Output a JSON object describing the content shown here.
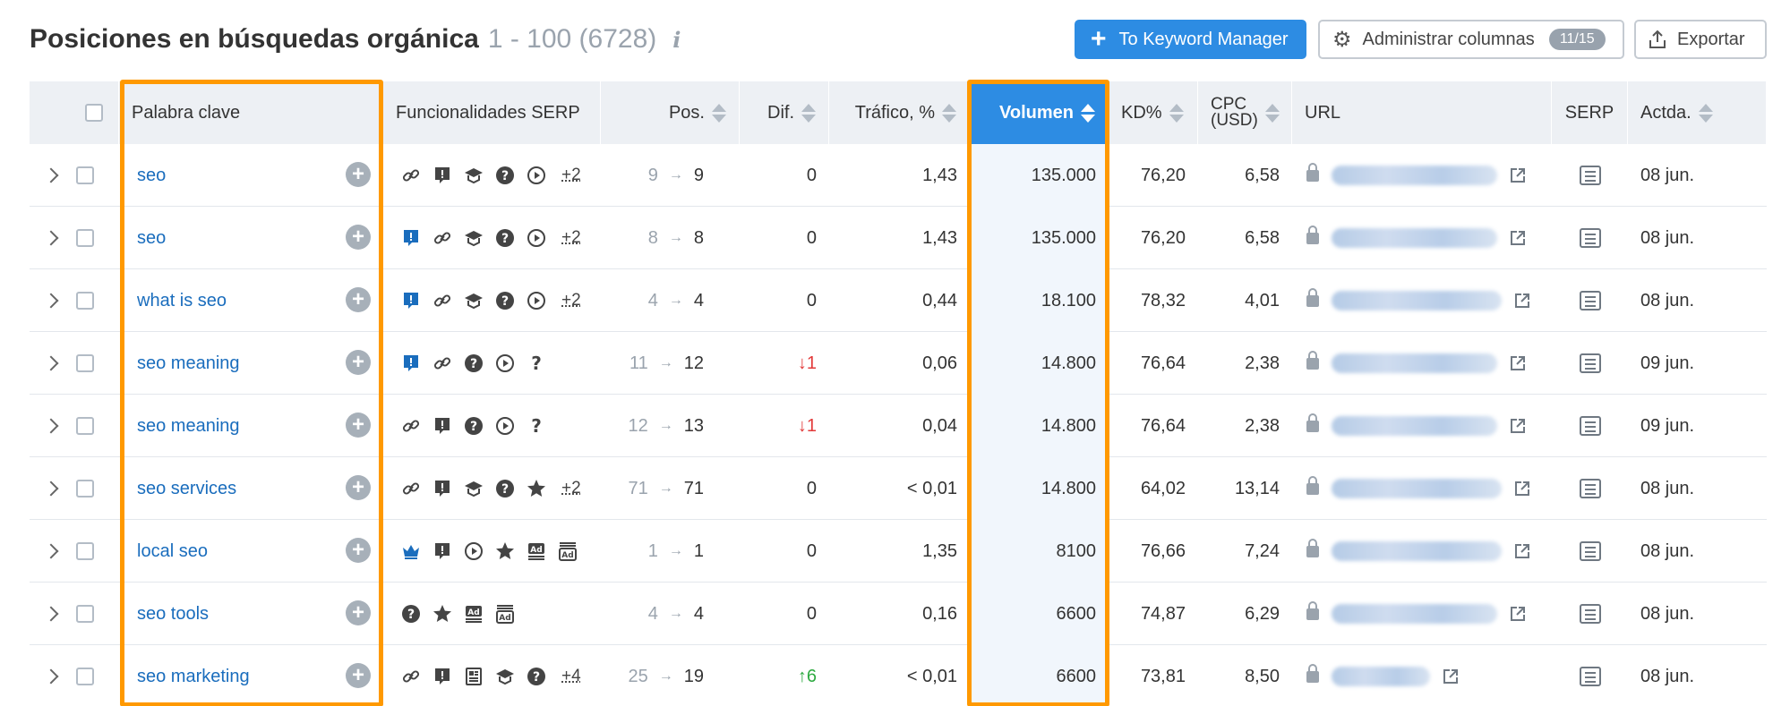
{
  "header": {
    "title": "Posiciones en búsquedas orgánica",
    "range": "1 - 100 (6728)",
    "info_icon": "i",
    "btn_keyword_manager": "To Keyword Manager",
    "btn_columns": "Administrar columnas",
    "columns_badge": "11/15",
    "btn_export": "Exportar"
  },
  "columns": {
    "keyword": "Palabra clave",
    "serp_features": "Funcionalidades SERP",
    "pos": "Pos.",
    "dif": "Dif.",
    "traffic": "Tráfico, %",
    "volume": "Volumen",
    "kd": "KD%",
    "cpc_line1": "CPC",
    "cpc_line2": "(USD)",
    "url": "URL",
    "serp": "SERP",
    "updated": "Actda."
  },
  "colors": {
    "accent": "#2d8ce3",
    "highlight": "#ff9900",
    "link": "#1a6dbd",
    "down": "#e23a3a",
    "up": "#2eaa41"
  },
  "rows": [
    {
      "keyword": "seo",
      "icons": [
        "link-icon",
        "review-icon",
        "graduation-cap-icon",
        "faq-icon",
        "video-icon"
      ],
      "more": "+2",
      "pos_prev": "9",
      "pos_cur": "9",
      "dif": "0",
      "dif_dir": "none",
      "traffic": "1,43",
      "volume": "135.000",
      "kd": "76,20",
      "cpc": "6,58",
      "date": "08 jun."
    },
    {
      "keyword": "seo",
      "icons": [
        "review-icon",
        "link-icon",
        "graduation-cap-icon",
        "faq-icon",
        "video-icon"
      ],
      "more": "+2",
      "pos_prev": "8",
      "pos_cur": "8",
      "dif": "0",
      "dif_dir": "none",
      "traffic": "1,43",
      "volume": "135.000",
      "kd": "76,20",
      "cpc": "6,58",
      "date": "08 jun."
    },
    {
      "keyword": "what is seo",
      "icons": [
        "review-icon",
        "link-icon",
        "graduation-cap-icon",
        "faq-icon",
        "video-icon"
      ],
      "more": "+2",
      "pos_prev": "4",
      "pos_cur": "4",
      "dif": "0",
      "dif_dir": "none",
      "traffic": "0,44",
      "volume": "18.100",
      "kd": "78,32",
      "cpc": "4,01",
      "date": "08 jun."
    },
    {
      "keyword": "seo meaning",
      "icons": [
        "review-icon",
        "link-icon",
        "faq-icon",
        "video-icon",
        "question-icon"
      ],
      "more": "",
      "pos_prev": "11",
      "pos_cur": "12",
      "dif": "1",
      "dif_dir": "down",
      "traffic": "0,06",
      "volume": "14.800",
      "kd": "76,64",
      "cpc": "2,38",
      "date": "09 jun."
    },
    {
      "keyword": "seo meaning",
      "icons": [
        "link-icon",
        "review-icon",
        "faq-icon",
        "video-icon",
        "question-icon"
      ],
      "more": "",
      "pos_prev": "12",
      "pos_cur": "13",
      "dif": "1",
      "dif_dir": "down",
      "traffic": "0,04",
      "volume": "14.800",
      "kd": "76,64",
      "cpc": "2,38",
      "date": "09 jun."
    },
    {
      "keyword": "seo services",
      "icons": [
        "link-icon",
        "review-icon",
        "graduation-cap-icon",
        "faq-icon",
        "star-icon"
      ],
      "more": "+2",
      "pos_prev": "71",
      "pos_cur": "71",
      "dif": "0",
      "dif_dir": "none",
      "traffic": "< 0,01",
      "volume": "14.800",
      "kd": "64,02",
      "cpc": "13,14",
      "date": "08 jun."
    },
    {
      "keyword": "local seo",
      "icons": [
        "crown-icon",
        "review-icon",
        "video-icon",
        "star-icon",
        "ad-top-icon",
        "ad-bottom-icon"
      ],
      "more": "",
      "pos_prev": "1",
      "pos_cur": "1",
      "dif": "0",
      "dif_dir": "none",
      "traffic": "1,35",
      "volume": "8100",
      "kd": "76,66",
      "cpc": "7,24",
      "date": "08 jun."
    },
    {
      "keyword": "seo tools",
      "icons": [
        "faq-icon",
        "star-icon",
        "ad-top-icon",
        "ad-bottom-icon"
      ],
      "more": "",
      "pos_prev": "4",
      "pos_cur": "4",
      "dif": "0",
      "dif_dir": "none",
      "traffic": "0,16",
      "volume": "6600",
      "kd": "74,87",
      "cpc": "6,29",
      "date": "08 jun."
    },
    {
      "keyword": "seo marketing",
      "icons": [
        "link-icon",
        "review-icon",
        "news-icon",
        "graduation-cap-icon",
        "faq-icon"
      ],
      "more": "+4",
      "pos_prev": "25",
      "pos_cur": "19",
      "dif": "6",
      "dif_dir": "up",
      "traffic": "< 0,01",
      "volume": "6600",
      "kd": "73,81",
      "cpc": "8,50",
      "date": "08 jun."
    }
  ]
}
